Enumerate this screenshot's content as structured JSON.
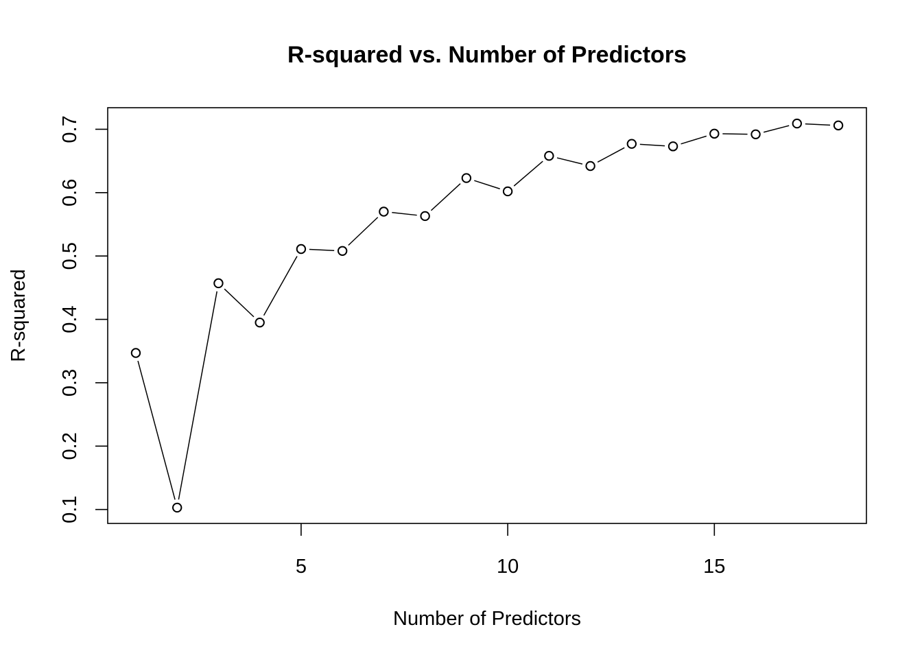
{
  "chart_data": {
    "type": "line",
    "title": "R-squared vs. Number of Predictors",
    "xlabel": "Number of Predictors",
    "ylabel": "R-squared",
    "x": [
      1,
      2,
      3,
      4,
      5,
      6,
      7,
      8,
      9,
      10,
      11,
      12,
      13,
      14,
      15,
      16,
      17,
      18
    ],
    "series": [
      {
        "values": [
          0.347,
          0.103,
          0.457,
          0.395,
          0.511,
          0.508,
          0.57,
          0.563,
          0.623,
          0.602,
          0.658,
          0.642,
          0.677,
          0.673,
          0.693,
          0.692,
          0.709,
          0.706
        ]
      }
    ],
    "xlim": [
      0.32,
      18.68
    ],
    "ylim": [
      0.078,
      0.734
    ],
    "xticks": [
      5,
      10,
      15
    ],
    "xtick_labels": [
      "5",
      "10",
      "15"
    ],
    "yticks": [
      0.1,
      0.2,
      0.3,
      0.4,
      0.5,
      0.6,
      0.7
    ],
    "ytick_labels": [
      "0.1",
      "0.2",
      "0.3",
      "0.4",
      "0.5",
      "0.6",
      "0.7"
    ],
    "marker": "open-circle",
    "line_style": "line-with-gaps-at-points",
    "grid": false,
    "legend": "none",
    "colors": {
      "background": "#ffffff",
      "foreground": "#000000"
    }
  }
}
